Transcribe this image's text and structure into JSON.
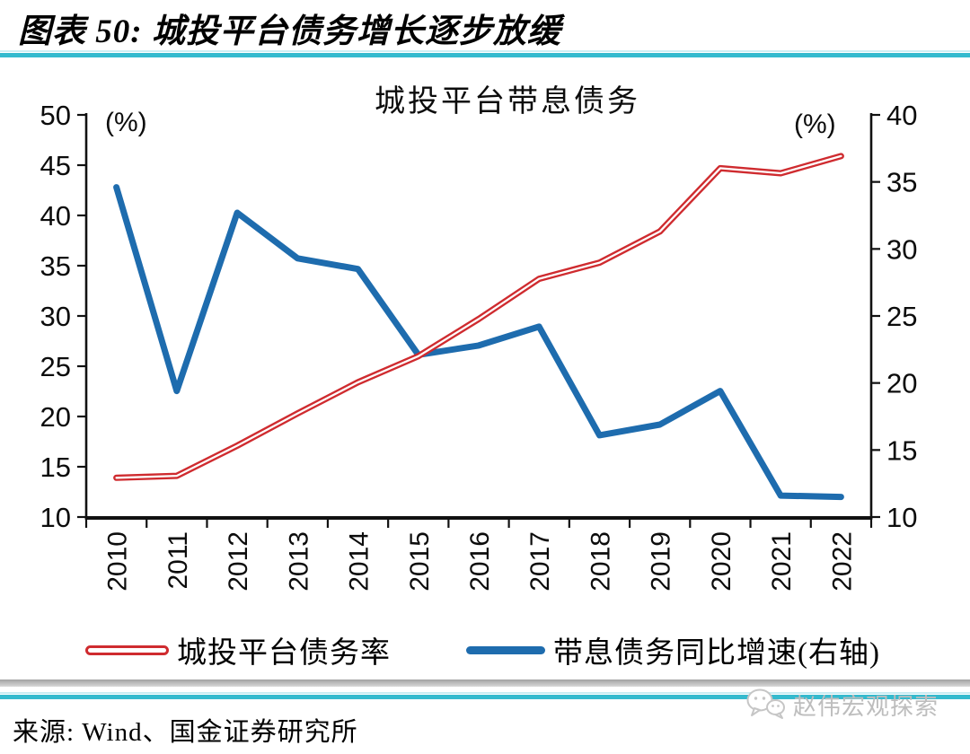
{
  "header": {
    "figure_title": "图表 50: 城投平台债务增长逐步放缓"
  },
  "chart_data": {
    "type": "line",
    "title": "城投平台带息债务",
    "categories": [
      "2010",
      "2011",
      "2012",
      "2013",
      "2014",
      "2015",
      "2016",
      "2017",
      "2018",
      "2019",
      "2020",
      "2021",
      "2022"
    ],
    "series": [
      {
        "name": "城投平台债务率",
        "axis": "left",
        "color": "#cf2b2f",
        "line_style": "double",
        "values": [
          13.9,
          14.1,
          17.1,
          20.3,
          23.4,
          26.0,
          29.7,
          33.7,
          35.3,
          38.4,
          44.7,
          44.2,
          45.9
        ]
      },
      {
        "name": "带息债务同比增速(右轴)",
        "axis": "right",
        "color": "#1e6cae",
        "line_style": "solid",
        "values": [
          34.6,
          19.4,
          32.7,
          29.3,
          28.5,
          22.1,
          22.8,
          24.2,
          16.1,
          16.9,
          19.4,
          11.6,
          11.5
        ]
      }
    ],
    "left_axis": {
      "label": "(%)",
      "min": 10,
      "max": 50,
      "step": 5
    },
    "right_axis": {
      "label": "(%)",
      "min": 10,
      "max": 40,
      "step": 5
    },
    "grid": false,
    "tick_marks": "between-categories",
    "x_label_rotation": -90,
    "legend_position": "bottom"
  },
  "footer": {
    "source": "来源: Wind、国金证券研究所",
    "watermark": "赵伟宏观探索"
  },
  "colors": {
    "accent_teal": "#34bace",
    "series_red": "#cf2b2f",
    "series_blue": "#1e6cae",
    "watermark_gray": "#bdbdbd",
    "axis_black": "#111111"
  }
}
